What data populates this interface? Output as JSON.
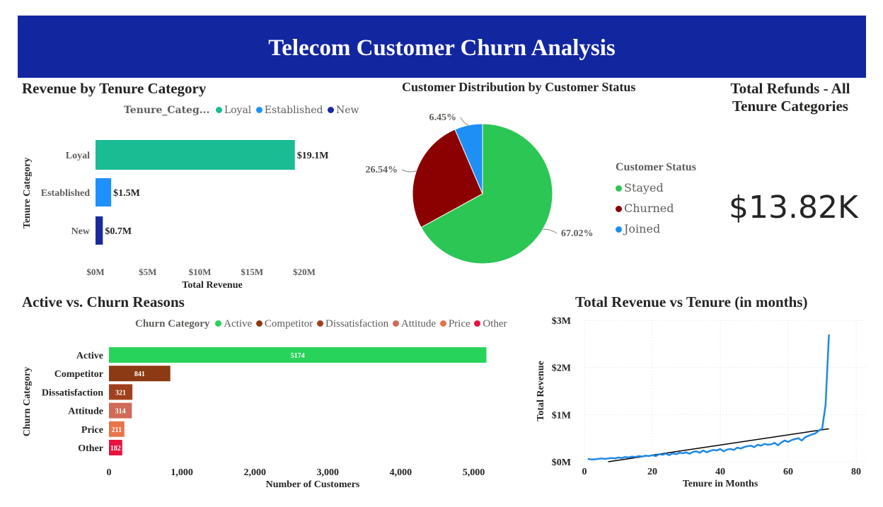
{
  "header": {
    "title": "Telecom Customer Churn Analysis"
  },
  "revenue_panel": {
    "title": "Revenue by Tenure Category"
  },
  "distribution_panel": {
    "title": "Customer Distribution by Customer Status"
  },
  "refunds_panel": {
    "title_line1": "Total Refunds - All",
    "title_line2": "Tenure Categories",
    "value": "$13.82K"
  },
  "churn_panel": {
    "title": "Active vs. Churn Reasons"
  },
  "tenure_panel": {
    "title": "Total Revenue vs Tenure (in months)"
  },
  "chart_data": [
    {
      "type": "bar",
      "orientation": "horizontal",
      "title": "Revenue by Tenure Category",
      "legend_title": "Tenure_Categ...",
      "categories": [
        "Loyal",
        "Established",
        "New"
      ],
      "values": [
        19.1,
        1.5,
        0.7
      ],
      "data_labels": [
        "$19.1M",
        "$1.5M",
        "$0.7M"
      ],
      "colors": [
        "#1abc94",
        "#1e90ff",
        "#1a2a9c"
      ],
      "xlabel": "Total Revenue",
      "ylabel": "Tenure Category",
      "xticks": [
        0,
        5,
        10,
        15,
        20
      ],
      "xtick_labels": [
        "$0M",
        "$5M",
        "$10M",
        "$15M",
        "$20M"
      ],
      "xlim": [
        0,
        20
      ],
      "unit": "$M"
    },
    {
      "type": "pie",
      "title": "Customer Distribution by Customer Status",
      "legend_title": "Customer Status",
      "labels": [
        "Stayed",
        "Churned",
        "Joined"
      ],
      "values": [
        67.02,
        26.54,
        6.45
      ],
      "data_labels": [
        "67.02%",
        "26.54%",
        "6.45%"
      ],
      "colors": [
        "#2bc653",
        "#8b0000",
        "#1e8ff5"
      ],
      "legend_position": "right"
    },
    {
      "type": "bar",
      "orientation": "horizontal",
      "title": "Active vs. Churn Reasons",
      "legend_title": "Churn Category",
      "categories": [
        "Active",
        "Competitor",
        "Dissatisfaction",
        "Attitude",
        "Price",
        "Other"
      ],
      "values": [
        5174,
        841,
        321,
        314,
        211,
        182
      ],
      "colors": [
        "#27d35a",
        "#8b3a13",
        "#a0401c",
        "#cf6b58",
        "#e7744a",
        "#e8123e"
      ],
      "xlabel": "Number of Customers",
      "ylabel": "Churn Category",
      "xticks": [
        0,
        1000,
        2000,
        3000,
        4000,
        5000
      ],
      "xtick_labels": [
        "0",
        "1,000",
        "2,000",
        "3,000",
        "4,000",
        "5,000"
      ],
      "xlim": [
        0,
        5400
      ]
    },
    {
      "type": "line",
      "title": "Total Revenue vs Tenure (in months)",
      "xlabel": "Tenure in Months",
      "ylabel": "Total Revenue",
      "xlim": [
        0,
        80
      ],
      "ylim": [
        0,
        3
      ],
      "unit": "$M",
      "xticks": [
        0,
        20,
        40,
        60,
        80
      ],
      "yticks": [
        0,
        1,
        2,
        3
      ],
      "ytick_labels": [
        "$0M",
        "$1M",
        "$2M",
        "$3M"
      ],
      "grid": true,
      "line_color": "#1e88e5",
      "trend_color": "#000000",
      "x": [
        1,
        2,
        3,
        4,
        5,
        6,
        7,
        8,
        9,
        10,
        11,
        12,
        13,
        14,
        15,
        16,
        17,
        18,
        19,
        20,
        21,
        22,
        23,
        24,
        25,
        26,
        27,
        28,
        29,
        30,
        31,
        32,
        33,
        34,
        35,
        36,
        37,
        38,
        39,
        40,
        41,
        42,
        43,
        44,
        45,
        46,
        47,
        48,
        49,
        50,
        51,
        52,
        53,
        54,
        55,
        56,
        57,
        58,
        59,
        60,
        61,
        62,
        63,
        64,
        65,
        66,
        67,
        68,
        69,
        70,
        71,
        72
      ],
      "y": [
        0.06,
        0.05,
        0.05,
        0.06,
        0.07,
        0.06,
        0.07,
        0.08,
        0.07,
        0.09,
        0.08,
        0.1,
        0.09,
        0.11,
        0.1,
        0.12,
        0.11,
        0.13,
        0.12,
        0.14,
        0.12,
        0.16,
        0.15,
        0.17,
        0.14,
        0.18,
        0.16,
        0.19,
        0.18,
        0.2,
        0.17,
        0.21,
        0.22,
        0.19,
        0.24,
        0.2,
        0.23,
        0.25,
        0.24,
        0.27,
        0.22,
        0.26,
        0.27,
        0.25,
        0.3,
        0.28,
        0.31,
        0.33,
        0.34,
        0.31,
        0.36,
        0.34,
        0.38,
        0.36,
        0.37,
        0.4,
        0.35,
        0.41,
        0.45,
        0.42,
        0.46,
        0.48,
        0.5,
        0.45,
        0.52,
        0.55,
        0.58,
        0.6,
        0.66,
        0.7,
        1.2,
        2.7
      ],
      "trend": {
        "x": [
          7,
          72
        ],
        "y": [
          0.0,
          0.7
        ]
      }
    }
  ]
}
